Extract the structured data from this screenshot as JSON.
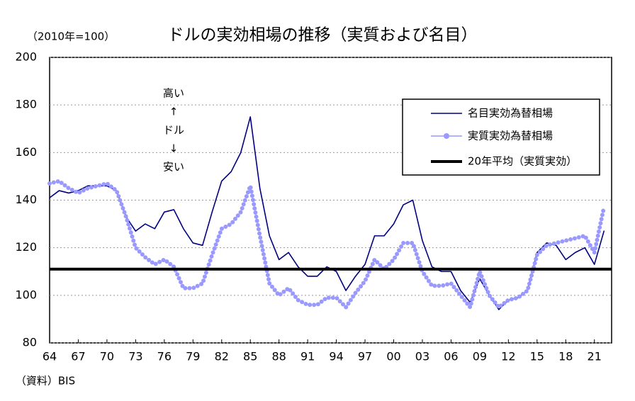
{
  "chart_data": {
    "type": "line",
    "title": "ドルの実効相場の推移（実質および名目）",
    "y_unit_label": "（2010年=100）",
    "source": "（資料）BIS",
    "annotation": [
      "高い",
      "↑",
      "ドル",
      "↓",
      "安い"
    ],
    "x": [
      1964,
      1965,
      1966,
      1967,
      1968,
      1969,
      1970,
      1971,
      1972,
      1973,
      1974,
      1975,
      1976,
      1977,
      1978,
      1979,
      1980,
      1981,
      1982,
      1983,
      1984,
      1985,
      1986,
      1987,
      1988,
      1989,
      1990,
      1991,
      1992,
      1993,
      1994,
      1995,
      1996,
      1997,
      1998,
      1999,
      2000,
      2001,
      2002,
      2003,
      2004,
      2005,
      2006,
      2007,
      2008,
      2009,
      2010,
      2011,
      2012,
      2013,
      2014,
      2015,
      2016,
      2017,
      2018,
      2019,
      2020,
      2021,
      2022
    ],
    "series": [
      {
        "name": "名目実効為替相場",
        "color": "#000080",
        "style": "line",
        "values": [
          141,
          144,
          143,
          144,
          146,
          146,
          146,
          144,
          133,
          127,
          130,
          128,
          135,
          136,
          128,
          122,
          121,
          135,
          148,
          152,
          160,
          175,
          145,
          125,
          115,
          118,
          112,
          108,
          108,
          112,
          110,
          102,
          108,
          113,
          125,
          125,
          130,
          138,
          140,
          123,
          112,
          110,
          110,
          102,
          97,
          107,
          100,
          94,
          98,
          99,
          102,
          118,
          122,
          121,
          115,
          118,
          120,
          113,
          127
        ]
      },
      {
        "name": "実質実効為替相場",
        "color": "#9999ff",
        "style": "dots",
        "values": [
          147,
          148,
          145,
          143,
          145,
          146,
          147,
          144,
          133,
          120,
          116,
          113,
          115,
          112,
          103,
          103,
          105,
          117,
          128,
          130,
          135,
          146,
          125,
          105,
          100,
          103,
          98,
          96,
          96,
          99,
          99,
          95,
          101,
          106,
          115,
          111,
          115,
          122,
          122,
          110,
          104,
          104,
          105,
          100,
          95,
          110,
          100,
          95,
          98,
          99,
          102,
          117,
          121,
          122,
          123,
          124,
          125,
          118,
          137
        ]
      }
    ],
    "reference_line": {
      "name": "20年平均（実質実効）",
      "value": 111,
      "color": "#000000"
    },
    "xlim": [
      1964,
      2022.8
    ],
    "ylim": [
      80,
      200
    ],
    "yticks": [
      80,
      100,
      120,
      140,
      160,
      180,
      200
    ],
    "xticks": [
      {
        "value": 1964,
        "label": "64"
      },
      {
        "value": 1967,
        "label": "67"
      },
      {
        "value": 1970,
        "label": "70"
      },
      {
        "value": 1973,
        "label": "73"
      },
      {
        "value": 1976,
        "label": "76"
      },
      {
        "value": 1979,
        "label": "79"
      },
      {
        "value": 1982,
        "label": "82"
      },
      {
        "value": 1985,
        "label": "85"
      },
      {
        "value": 1988,
        "label": "88"
      },
      {
        "value": 1991,
        "label": "91"
      },
      {
        "value": 1994,
        "label": "94"
      },
      {
        "value": 1997,
        "label": "97"
      },
      {
        "value": 2000,
        "label": "00"
      },
      {
        "value": 2003,
        "label": "03"
      },
      {
        "value": 2006,
        "label": "06"
      },
      {
        "value": 2009,
        "label": "09"
      },
      {
        "value": 2012,
        "label": "12"
      },
      {
        "value": 2015,
        "label": "15"
      },
      {
        "value": 2018,
        "label": "18"
      },
      {
        "value": 2021,
        "label": "21"
      }
    ],
    "grid": true
  }
}
